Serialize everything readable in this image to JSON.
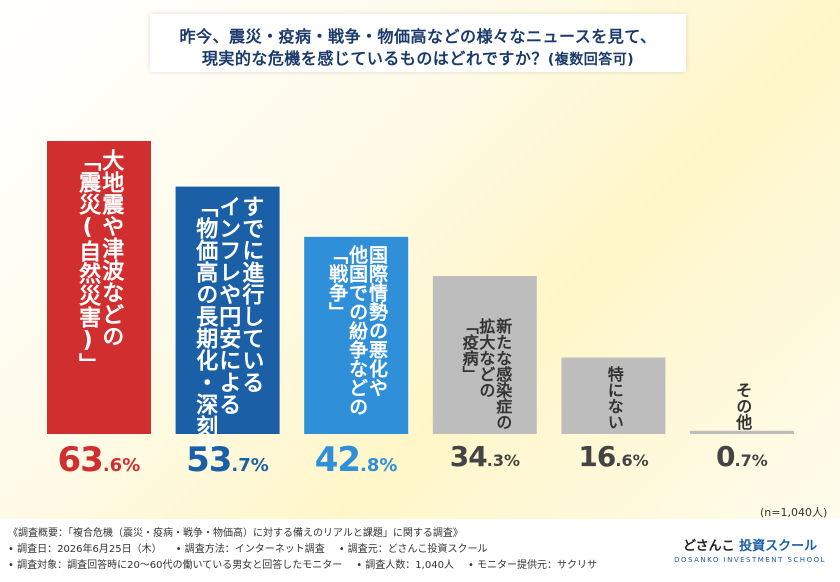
{
  "title": {
    "line1": "昨今、震災・疫病・戦争・物価高などの様々なニュースを見て、",
    "line2": "現実的な危機を感じているものはどれですか？",
    "line2_suffix": "(複数回答可)"
  },
  "chart_data": {
    "type": "bar",
    "categories": [
      "大地震や津波などの「震災(自然災害)」",
      "すでに進行しているインフレや円安による「物価高の長期化・深刻化」",
      "国際情勢の悪化や他国での紛争などの「戦争」",
      "新たな感染症の拡大などの「疫病」",
      "特にない",
      "その他"
    ],
    "category_label_columns": [
      [
        "大地震や津波などの",
        "「震災(自然災害)」"
      ],
      [
        "すでに進行している",
        "インフレや円安による",
        "「物価高の長期化・深刻化」"
      ],
      [
        "国際情勢の悪化や",
        "他国での紛争などの",
        "「戦争」"
      ],
      [
        "新たな感染症の",
        "拡大などの",
        "「疫病」"
      ],
      [
        "特にない"
      ],
      [
        "その他"
      ]
    ],
    "values": [
      63.6,
      53.7,
      42.8,
      34.3,
      16.6,
      0.7
    ],
    "value_labels": [
      {
        "int": "63",
        "dec": ".6%"
      },
      {
        "int": "53",
        "dec": ".7%"
      },
      {
        "int": "42",
        "dec": ".8%"
      },
      {
        "int": "34",
        "dec": ".3%"
      },
      {
        "int": "16",
        "dec": ".6%"
      },
      {
        "int": "0",
        "dec": ".7%"
      }
    ],
    "ylim": [
      0,
      63.6
    ],
    "colors": [
      "#d12f2f",
      "#1b5fa6",
      "#2f8fd8",
      "#bdbdbd",
      "#bdbdbd",
      "#bdbdbd"
    ],
    "label_colors": [
      "#ffffff",
      "#ffffff",
      "#ffffff",
      "#333333",
      "#333333",
      "#333333"
    ],
    "value_colors": [
      "#d12f2f",
      "#1b5fa6",
      "#2f8fd8",
      "#444444",
      "#444444",
      "#444444"
    ],
    "grid": false,
    "legend": "none"
  },
  "n_note": "(n=1,040人)",
  "footer": {
    "line1": "《調査概要：「複合危機（震災・疫病・戦争・物価高）に対する備えのリアルと課題」に関する調査》",
    "line2_a": "• 調査日：2026年6月25日（木）",
    "line2_b": "• 調査方法：インターネット調査",
    "line2_c": "• 調査元：どさんこ投資スクール",
    "line3_a": "• 調査対象：調査回答時に20〜60代の働いている男女と回答したモニター",
    "line3_b": "• 調査人数：1,040人",
    "line3_c": "• モニター提供元：サクリサ"
  },
  "logo": {
    "main_a": "どさんこ",
    "main_b": "投資スクール",
    "sub": "DOSANKO INVESTMENT SCHOOL"
  }
}
